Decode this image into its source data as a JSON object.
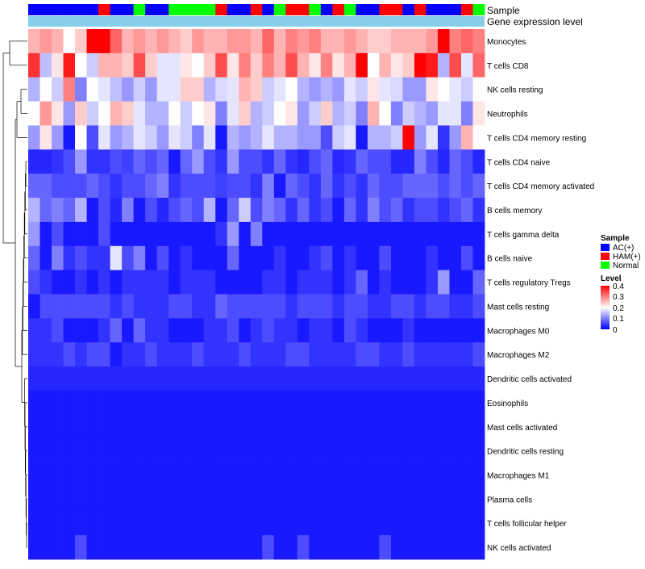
{
  "chart_data": {
    "type": "heatmap",
    "title": "",
    "row_labels": [
      "Monocytes",
      "T cells CD8",
      "NK cells resting",
      "Neutrophils",
      "T cells CD4 memory resting",
      "T cells CD4 naive",
      "T cells CD4 memory activated",
      "B cells memory",
      "T cells gamma delta",
      "B cells naive",
      "T cells regulatory  Tregs",
      "Mast cells resting",
      "Macrophages M0",
      "Macrophages M2",
      "Dendritic cells activated",
      "Eosinophils",
      "Mast cells activated",
      "Dendritic cells resting",
      "Macrophages M1",
      "Plasma cells",
      "T cells follicular helper",
      "NK cells activated"
    ],
    "annotation_tracks": [
      "Sample",
      "Gene expression level"
    ],
    "sample_groups": [
      "AC",
      "AC",
      "AC",
      "AC",
      "AC",
      "AC",
      "HAM",
      "AC",
      "AC",
      "Normal",
      "AC",
      "AC",
      "Normal",
      "Normal",
      "Normal",
      "Normal",
      "HAM",
      "AC",
      "AC",
      "HAM",
      "AC",
      "Normal",
      "HAM",
      "HAM",
      "Normal",
      "AC",
      "HAM",
      "Normal",
      "AC",
      "AC",
      "HAM",
      "HAM",
      "AC",
      "HAM",
      "AC",
      "AC",
      "AC",
      "HAM",
      "Normal"
    ],
    "group_colors": {
      "AC": "#0000ff",
      "HAM": "#ff0000",
      "Normal": "#00ff00"
    },
    "expression_bar_color": "#87ceeb",
    "legend_sample": {
      "title": "Sample",
      "entries": [
        {
          "label": "AC(+)",
          "group": "AC"
        },
        {
          "label": "HAM(+)",
          "group": "HAM"
        },
        {
          "label": "Normal",
          "group": "Normal"
        }
      ]
    },
    "legend_level": {
      "title": "Level",
      "ticks": [
        "0.4",
        "0.3",
        "0.2",
        "0.1",
        "0"
      ],
      "colors": [
        "#0000ff",
        "#ffffff",
        "#ff0000"
      ],
      "range": [
        0,
        0.4
      ]
    },
    "matrix": [
      [
        0.26,
        0.28,
        0.26,
        0.2,
        0.24,
        0.4,
        0.4,
        0.32,
        0.26,
        0.28,
        0.26,
        0.28,
        0.26,
        0.24,
        0.28,
        0.26,
        0.26,
        0.28,
        0.28,
        0.26,
        0.32,
        0.26,
        0.3,
        0.28,
        0.3,
        0.26,
        0.26,
        0.28,
        0.26,
        0.24,
        0.24,
        0.26,
        0.26,
        0.26,
        0.28,
        0.4,
        0.3,
        0.32,
        0.3
      ],
      [
        0.36,
        0.15,
        0.22,
        0.38,
        0.2,
        0.16,
        0.26,
        0.26,
        0.24,
        0.34,
        0.24,
        0.18,
        0.18,
        0.22,
        0.2,
        0.24,
        0.34,
        0.22,
        0.3,
        0.24,
        0.3,
        0.26,
        0.34,
        0.26,
        0.22,
        0.3,
        0.22,
        0.26,
        0.4,
        0.2,
        0.26,
        0.22,
        0.24,
        0.4,
        0.38,
        0.14,
        0.34,
        0.18,
        0.32
      ],
      [
        0.14,
        0.2,
        0.16,
        0.3,
        0.1,
        0.2,
        0.18,
        0.15,
        0.12,
        0.16,
        0.12,
        0.18,
        0.18,
        0.24,
        0.24,
        0.14,
        0.17,
        0.18,
        0.26,
        0.24,
        0.16,
        0.18,
        0.2,
        0.14,
        0.12,
        0.14,
        0.12,
        0.18,
        0.16,
        0.22,
        0.18,
        0.17,
        0.12,
        0.12,
        0.22,
        0.2,
        0.18,
        0.16,
        0.2
      ],
      [
        0.2,
        0.28,
        0.22,
        0.12,
        0.24,
        0.16,
        0.2,
        0.26,
        0.24,
        0.18,
        0.14,
        0.14,
        0.2,
        0.16,
        0.2,
        0.22,
        0.1,
        0.18,
        0.24,
        0.14,
        0.16,
        0.2,
        0.22,
        0.12,
        0.16,
        0.24,
        0.14,
        0.16,
        0.1,
        0.26,
        0.2,
        0.1,
        0.16,
        0.14,
        0.12,
        0.18,
        0.18,
        0.1,
        0.22
      ],
      [
        0.12,
        0.22,
        0.12,
        0.02,
        0.2,
        0.06,
        0.18,
        0.12,
        0.14,
        0.18,
        0.16,
        0.12,
        0.18,
        0.16,
        0.1,
        0.18,
        0.02,
        0.14,
        0.12,
        0.14,
        0.18,
        0.14,
        0.14,
        0.12,
        0.12,
        0.06,
        0.16,
        0.18,
        0.02,
        0.14,
        0.14,
        0.16,
        0.4,
        0.12,
        0.18,
        0.04,
        0.12,
        0.26,
        0.2
      ],
      [
        0.03,
        0.03,
        0.04,
        0.06,
        0.12,
        0.04,
        0.04,
        0.06,
        0.05,
        0.08,
        0.06,
        0.08,
        0.02,
        0.08,
        0.12,
        0.06,
        0.04,
        0.12,
        0.06,
        0.06,
        0.04,
        0.08,
        0.04,
        0.03,
        0.06,
        0.08,
        0.03,
        0.04,
        0.08,
        0.06,
        0.06,
        0.03,
        0.03,
        0.1,
        0.06,
        0.03,
        0.08,
        0.06,
        0.03
      ],
      [
        0.08,
        0.08,
        0.06,
        0.06,
        0.06,
        0.08,
        0.06,
        0.04,
        0.06,
        0.06,
        0.08,
        0.1,
        0.04,
        0.06,
        0.06,
        0.06,
        0.05,
        0.06,
        0.06,
        0.04,
        0.1,
        0.02,
        0.08,
        0.06,
        0.04,
        0.08,
        0.04,
        0.06,
        0.04,
        0.08,
        0.06,
        0.06,
        0.08,
        0.08,
        0.08,
        0.06,
        0.08,
        0.06,
        0.08
      ],
      [
        0.14,
        0.08,
        0.1,
        0.08,
        0.14,
        0.02,
        0.06,
        0.03,
        0.1,
        0.02,
        0.06,
        0.03,
        0.06,
        0.08,
        0.06,
        0.14,
        0.02,
        0.08,
        0.16,
        0.06,
        0.1,
        0.08,
        0.04,
        0.08,
        0.04,
        0.06,
        0.02,
        0.08,
        0.04,
        0.1,
        0.06,
        0.08,
        0.04,
        0.06,
        0.06,
        0.04,
        0.06,
        0.08,
        0.04
      ],
      [
        0.12,
        0.02,
        0.06,
        0.02,
        0.02,
        0.02,
        0.06,
        0.02,
        0.02,
        0.02,
        0.02,
        0.02,
        0.02,
        0.02,
        0.02,
        0.02,
        0.04,
        0.12,
        0.02,
        0.1,
        0.02,
        0.02,
        0.02,
        0.02,
        0.02,
        0.02,
        0.02,
        0.02,
        0.02,
        0.02,
        0.02,
        0.02,
        0.02,
        0.02,
        0.02,
        0.02,
        0.02,
        0.02,
        0.02
      ],
      [
        0.08,
        0.02,
        0.1,
        0.04,
        0.06,
        0.04,
        0.04,
        0.18,
        0.06,
        0.1,
        0.02,
        0.06,
        0.02,
        0.04,
        0.02,
        0.02,
        0.02,
        0.08,
        0.02,
        0.02,
        0.02,
        0.04,
        0.02,
        0.02,
        0.04,
        0.06,
        0.02,
        0.04,
        0.02,
        0.02,
        0.06,
        0.02,
        0.02,
        0.02,
        0.04,
        0.02,
        0.02,
        0.06,
        0.02
      ],
      [
        0.06,
        0.04,
        0.02,
        0.02,
        0.04,
        0.02,
        0.04,
        0.02,
        0.04,
        0.04,
        0.04,
        0.04,
        0.02,
        0.04,
        0.04,
        0.04,
        0.02,
        0.02,
        0.02,
        0.02,
        0.04,
        0.04,
        0.02,
        0.04,
        0.04,
        0.04,
        0.02,
        0.04,
        0.08,
        0.02,
        0.04,
        0.02,
        0.02,
        0.02,
        0.04,
        0.12,
        0.02,
        0.02,
        0.08
      ],
      [
        0.02,
        0.06,
        0.06,
        0.06,
        0.06,
        0.06,
        0.06,
        0.04,
        0.06,
        0.04,
        0.04,
        0.04,
        0.06,
        0.06,
        0.04,
        0.04,
        0.08,
        0.06,
        0.06,
        0.06,
        0.06,
        0.06,
        0.04,
        0.06,
        0.06,
        0.06,
        0.04,
        0.06,
        0.06,
        0.04,
        0.04,
        0.06,
        0.06,
        0.04,
        0.06,
        0.06,
        0.04,
        0.04,
        0.06
      ],
      [
        0.04,
        0.04,
        0.06,
        0.02,
        0.02,
        0.02,
        0.04,
        0.08,
        0.02,
        0.08,
        0.04,
        0.04,
        0.02,
        0.02,
        0.02,
        0.04,
        0.04,
        0.06,
        0.02,
        0.04,
        0.06,
        0.04,
        0.04,
        0.02,
        0.04,
        0.04,
        0.02,
        0.06,
        0.04,
        0.02,
        0.02,
        0.02,
        0.04,
        0.02,
        0.02,
        0.02,
        0.02,
        0.02,
        0.02
      ],
      [
        0.04,
        0.04,
        0.04,
        0.06,
        0.04,
        0.06,
        0.06,
        0.02,
        0.04,
        0.04,
        0.06,
        0.04,
        0.04,
        0.04,
        0.06,
        0.04,
        0.04,
        0.04,
        0.06,
        0.04,
        0.04,
        0.04,
        0.06,
        0.06,
        0.04,
        0.04,
        0.04,
        0.04,
        0.06,
        0.06,
        0.04,
        0.04,
        0.06,
        0.04,
        0.04,
        0.04,
        0.04,
        0.04,
        0.06
      ],
      [
        0.03,
        0.03,
        0.03,
        0.03,
        0.03,
        0.03,
        0.03,
        0.03,
        0.03,
        0.03,
        0.03,
        0.03,
        0.03,
        0.03,
        0.03,
        0.03,
        0.03,
        0.03,
        0.03,
        0.03,
        0.03,
        0.03,
        0.03,
        0.03,
        0.03,
        0.03,
        0.03,
        0.03,
        0.03,
        0.03,
        0.03,
        0.03,
        0.03,
        0.03,
        0.03,
        0.03,
        0.03,
        0.03,
        0.03
      ],
      [
        0.02,
        0.02,
        0.02,
        0.02,
        0.02,
        0.02,
        0.02,
        0.02,
        0.02,
        0.02,
        0.02,
        0.02,
        0.02,
        0.02,
        0.02,
        0.02,
        0.02,
        0.02,
        0.02,
        0.02,
        0.02,
        0.02,
        0.02,
        0.02,
        0.02,
        0.02,
        0.02,
        0.02,
        0.02,
        0.02,
        0.02,
        0.02,
        0.02,
        0.02,
        0.02,
        0.02,
        0.02,
        0.02,
        0.02
      ],
      [
        0.02,
        0.02,
        0.02,
        0.02,
        0.02,
        0.02,
        0.02,
        0.02,
        0.02,
        0.02,
        0.02,
        0.02,
        0.02,
        0.02,
        0.02,
        0.02,
        0.02,
        0.02,
        0.02,
        0.02,
        0.02,
        0.02,
        0.02,
        0.02,
        0.02,
        0.02,
        0.02,
        0.02,
        0.02,
        0.02,
        0.02,
        0.02,
        0.02,
        0.02,
        0.02,
        0.02,
        0.02,
        0.02,
        0.02
      ],
      [
        0.02,
        0.02,
        0.02,
        0.02,
        0.02,
        0.02,
        0.02,
        0.02,
        0.02,
        0.02,
        0.02,
        0.02,
        0.02,
        0.02,
        0.02,
        0.02,
        0.02,
        0.02,
        0.02,
        0.02,
        0.02,
        0.02,
        0.02,
        0.02,
        0.02,
        0.02,
        0.02,
        0.02,
        0.02,
        0.02,
        0.02,
        0.02,
        0.02,
        0.02,
        0.02,
        0.02,
        0.02,
        0.02,
        0.02
      ],
      [
        0.02,
        0.02,
        0.02,
        0.02,
        0.02,
        0.02,
        0.02,
        0.02,
        0.02,
        0.02,
        0.02,
        0.02,
        0.02,
        0.02,
        0.02,
        0.02,
        0.02,
        0.02,
        0.02,
        0.02,
        0.02,
        0.02,
        0.02,
        0.02,
        0.02,
        0.02,
        0.02,
        0.02,
        0.02,
        0.02,
        0.02,
        0.02,
        0.02,
        0.02,
        0.02,
        0.02,
        0.02,
        0.02,
        0.02
      ],
      [
        0.02,
        0.02,
        0.02,
        0.02,
        0.02,
        0.02,
        0.02,
        0.02,
        0.02,
        0.02,
        0.02,
        0.02,
        0.02,
        0.02,
        0.02,
        0.02,
        0.02,
        0.02,
        0.02,
        0.02,
        0.02,
        0.02,
        0.02,
        0.02,
        0.02,
        0.02,
        0.02,
        0.02,
        0.02,
        0.02,
        0.02,
        0.02,
        0.02,
        0.02,
        0.02,
        0.02,
        0.02,
        0.02,
        0.02
      ],
      [
        0.02,
        0.02,
        0.02,
        0.02,
        0.02,
        0.02,
        0.02,
        0.02,
        0.02,
        0.02,
        0.02,
        0.02,
        0.02,
        0.02,
        0.02,
        0.02,
        0.02,
        0.02,
        0.02,
        0.02,
        0.02,
        0.02,
        0.02,
        0.02,
        0.02,
        0.02,
        0.02,
        0.02,
        0.02,
        0.02,
        0.02,
        0.02,
        0.02,
        0.02,
        0.02,
        0.02,
        0.02,
        0.02,
        0.02
      ],
      [
        0.02,
        0.02,
        0.02,
        0.02,
        0.06,
        0.02,
        0.02,
        0.02,
        0.02,
        0.02,
        0.02,
        0.02,
        0.02,
        0.02,
        0.02,
        0.02,
        0.02,
        0.02,
        0.02,
        0.02,
        0.06,
        0.02,
        0.02,
        0.06,
        0.02,
        0.02,
        0.02,
        0.02,
        0.02,
        0.02,
        0.06,
        0.02,
        0.02,
        0.02,
        0.02,
        0.02,
        0.02,
        0.02,
        0.02
      ]
    ]
  }
}
